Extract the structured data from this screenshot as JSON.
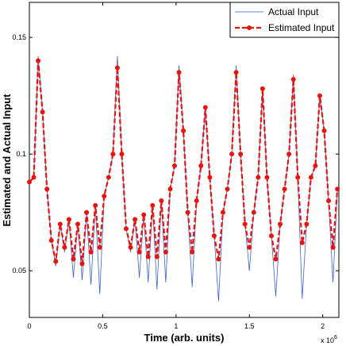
{
  "chart_data": {
    "type": "line",
    "xlabel": "Time (arb. units)",
    "ylabel": "Estimated and Actual Input",
    "x_multiplier": {
      "base": "x 10",
      "exponent": "6"
    },
    "x": [
      0,
      0.03,
      0.06,
      0.09,
      0.12,
      0.15,
      0.18,
      0.21,
      0.24,
      0.27,
      0.3,
      0.33,
      0.36,
      0.39,
      0.42,
      0.45,
      0.48,
      0.51,
      0.54,
      0.57,
      0.6,
      0.63,
      0.66,
      0.69,
      0.72,
      0.75,
      0.78,
      0.81,
      0.84,
      0.87,
      0.9,
      0.93,
      0.96,
      0.99,
      1.02,
      1.05,
      1.08,
      1.11,
      1.14,
      1.17,
      1.2,
      1.23,
      1.26,
      1.29,
      1.32,
      1.35,
      1.38,
      1.41,
      1.44,
      1.47,
      1.5,
      1.53,
      1.56,
      1.59,
      1.62,
      1.65,
      1.68,
      1.71,
      1.74,
      1.77,
      1.8,
      1.83,
      1.86,
      1.89,
      1.92,
      1.95,
      1.98,
      2.01,
      2.04,
      2.07,
      2.1
    ],
    "series": [
      {
        "name": "Actual Input",
        "color": "#3a5fd9",
        "style": "solid",
        "values": [
          0.088,
          0.09,
          0.142,
          0.118,
          0.085,
          0.063,
          0.052,
          0.07,
          0.058,
          0.072,
          0.047,
          0.07,
          0.046,
          0.075,
          0.044,
          0.078,
          0.04,
          0.082,
          0.09,
          0.1,
          0.142,
          0.1,
          0.068,
          0.058,
          0.072,
          0.047,
          0.074,
          0.045,
          0.078,
          0.042,
          0.08,
          0.045,
          0.085,
          0.095,
          0.138,
          0.11,
          0.075,
          0.043,
          0.08,
          0.095,
          0.12,
          0.09,
          0.065,
          0.037,
          0.075,
          0.085,
          0.1,
          0.138,
          0.1,
          0.07,
          0.05,
          0.075,
          0.09,
          0.128,
          0.09,
          0.065,
          0.039,
          0.07,
          0.085,
          0.1,
          0.134,
          0.09,
          0.038,
          0.07,
          0.09,
          0.095,
          0.125,
          0.11,
          0.08,
          0.045,
          0.085
        ]
      },
      {
        "name": "Estimated Input",
        "color": "#e8150f",
        "style": "dashed-dots",
        "values": [
          0.088,
          0.09,
          0.14,
          0.118,
          0.085,
          0.063,
          0.054,
          0.07,
          0.06,
          0.072,
          0.055,
          0.07,
          0.053,
          0.075,
          0.058,
          0.078,
          0.06,
          0.082,
          0.09,
          0.1,
          0.137,
          0.1,
          0.068,
          0.06,
          0.072,
          0.058,
          0.074,
          0.056,
          0.078,
          0.056,
          0.08,
          0.058,
          0.085,
          0.095,
          0.135,
          0.11,
          0.075,
          0.058,
          0.08,
          0.095,
          0.12,
          0.09,
          0.065,
          0.055,
          0.075,
          0.085,
          0.1,
          0.135,
          0.1,
          0.07,
          0.06,
          0.075,
          0.09,
          0.128,
          0.09,
          0.065,
          0.055,
          0.07,
          0.085,
          0.1,
          0.132,
          0.09,
          0.062,
          0.07,
          0.09,
          0.095,
          0.125,
          0.11,
          0.08,
          0.06,
          0.085
        ]
      }
    ],
    "xlim": [
      0,
      2.11
    ],
    "xticks": [
      0,
      0.5,
      1,
      1.5,
      2
    ],
    "ylim": [
      0.03,
      0.165
    ],
    "yticks": [
      0.05,
      0.1,
      0.15
    ],
    "grid": false,
    "legend": "upper right"
  }
}
